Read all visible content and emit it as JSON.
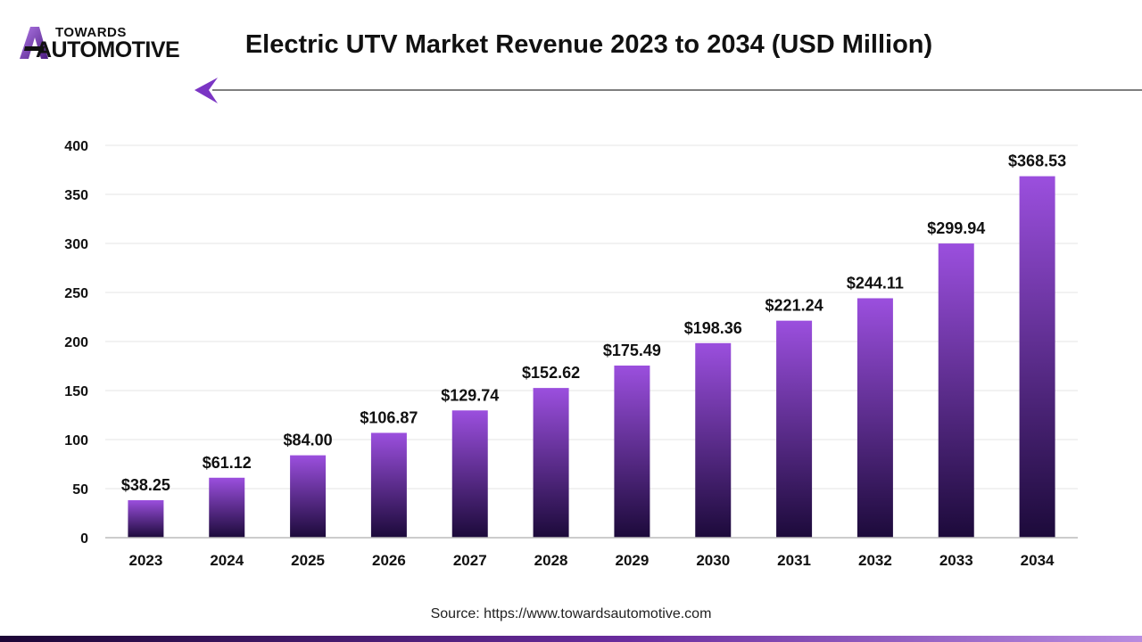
{
  "brand": {
    "line1": "TOWARDS",
    "line2": "AUTOMOTIVE"
  },
  "source": "Source: https://www.towardsautomotive.com",
  "colors": {
    "bar_top": "#9b4fde",
    "bar_bottom": "#1c0a3a",
    "accent": "#6a2c9e",
    "gridline": "#e6e6e6"
  },
  "chart_data": {
    "type": "bar",
    "title": "Electric UTV Market Revenue 2023 to 2034 (USD Million)",
    "xlabel": "",
    "ylabel": "",
    "categories": [
      "2023",
      "2024",
      "2025",
      "2026",
      "2027",
      "2028",
      "2029",
      "2030",
      "2031",
      "2032",
      "2033",
      "2034"
    ],
    "values": [
      38.25,
      61.12,
      84.0,
      106.87,
      129.74,
      152.62,
      175.49,
      198.36,
      221.24,
      244.11,
      299.94,
      368.53
    ],
    "data_labels": [
      "$38.25",
      "$61.12",
      "$84.00",
      "$106.87",
      "$129.74",
      "$152.62",
      "$175.49",
      "$198.36",
      "$221.24",
      "$244.11",
      "$299.94",
      "$368.53"
    ],
    "yticks": [
      0,
      50,
      100,
      150,
      200,
      250,
      300,
      350,
      400
    ],
    "ylim": [
      0,
      400
    ],
    "grid": true,
    "legend": "none"
  }
}
